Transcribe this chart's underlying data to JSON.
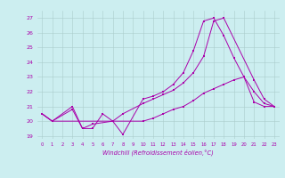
{
  "xlabel": "Windchill (Refroidissement éolien,°C)",
  "background_color": "#cceef0",
  "grid_color": "#aacccc",
  "line_color": "#aa00aa",
  "ylim": [
    18.8,
    27.5
  ],
  "xlim": [
    -0.5,
    23.5
  ],
  "yticks": [
    19,
    20,
    21,
    22,
    23,
    24,
    25,
    26,
    27
  ],
  "xticks": [
    0,
    1,
    2,
    3,
    4,
    5,
    6,
    7,
    8,
    9,
    10,
    11,
    12,
    13,
    14,
    15,
    16,
    17,
    18,
    19,
    20,
    21,
    22,
    23
  ],
  "line1_x": [
    0,
    1,
    3,
    4,
    5,
    6,
    7,
    8,
    10,
    11,
    12,
    13,
    14,
    15,
    16,
    17,
    18,
    19,
    20,
    21,
    22,
    23
  ],
  "line1_y": [
    20.5,
    20.0,
    21.0,
    19.5,
    19.5,
    20.5,
    20.0,
    19.1,
    21.5,
    21.7,
    22.0,
    22.5,
    23.3,
    24.8,
    26.8,
    27.0,
    25.8,
    24.3,
    23.0,
    22.0,
    21.2,
    21.0
  ],
  "line2_x": [
    0,
    1,
    3,
    4,
    5,
    7,
    8,
    10,
    11,
    12,
    13,
    14,
    15,
    16,
    17,
    18,
    21,
    22,
    23
  ],
  "line2_y": [
    20.5,
    20.0,
    20.8,
    19.5,
    19.8,
    20.0,
    20.5,
    21.2,
    21.5,
    21.8,
    22.1,
    22.6,
    23.3,
    24.4,
    26.8,
    27.0,
    22.8,
    21.5,
    21.0
  ],
  "line3_x": [
    0,
    1,
    10,
    11,
    12,
    13,
    14,
    15,
    16,
    17,
    18,
    19,
    20,
    21,
    22,
    23
  ],
  "line3_y": [
    20.5,
    20.0,
    20.0,
    20.2,
    20.5,
    20.8,
    21.0,
    21.4,
    21.9,
    22.2,
    22.5,
    22.8,
    23.0,
    21.3,
    21.0,
    21.0
  ]
}
